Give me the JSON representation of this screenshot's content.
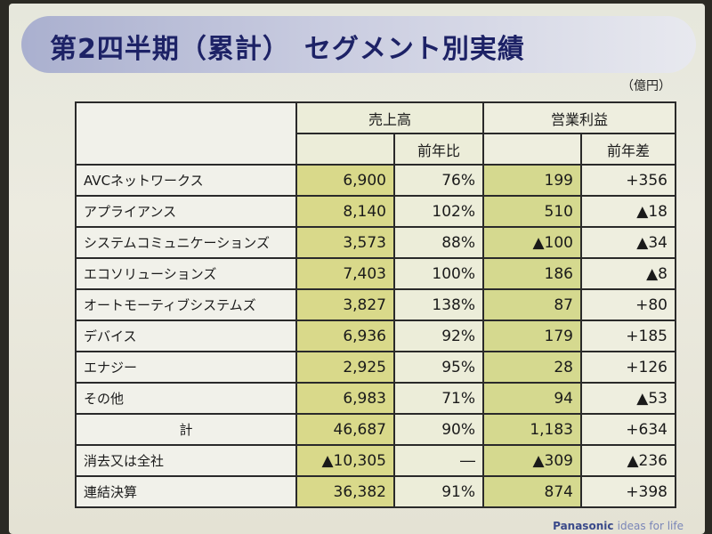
{
  "title": "第2四半期（累計）　セグメント別実績",
  "unit": "（億円）",
  "headers": {
    "sales": "売上高",
    "yoy": "前年比",
    "op": "営業利益",
    "diff": "前年差"
  },
  "rows": [
    {
      "label": "AVCネットワークス",
      "sales": "6,900",
      "yoy": "76%",
      "op": "199",
      "diff": "+356"
    },
    {
      "label": "アプライアンス",
      "sales": "8,140",
      "yoy": "102%",
      "op": "510",
      "diff": "▲18"
    },
    {
      "label": "システムコミュニケーションズ",
      "sales": "3,573",
      "yoy": "88%",
      "op": "▲100",
      "diff": "▲34"
    },
    {
      "label": "エコソリューションズ",
      "sales": "7,403",
      "yoy": "100%",
      "op": "186",
      "diff": "▲8"
    },
    {
      "label": "オートモーティブシステムズ",
      "sales": "3,827",
      "yoy": "138%",
      "op": "87",
      "diff": "+80"
    },
    {
      "label": "デバイス",
      "sales": "6,936",
      "yoy": "92%",
      "op": "179",
      "diff": "+185"
    },
    {
      "label": "エナジー",
      "sales": "2,925",
      "yoy": "95%",
      "op": "28",
      "diff": "+126"
    },
    {
      "label": "その他",
      "sales": "6,983",
      "yoy": "71%",
      "op": "94",
      "diff": "▲53"
    },
    {
      "label": "計",
      "sales": "46,687",
      "yoy": "90%",
      "op": "1,183",
      "diff": "+634"
    },
    {
      "label": "消去又は全社",
      "sales": "▲10,305",
      "yoy": "―",
      "op": "▲309",
      "diff": "▲236"
    },
    {
      "label": "連結決算",
      "sales": "36,382",
      "yoy": "91%",
      "op": "874",
      "diff": "+398"
    }
  ],
  "brand": {
    "name": "Panasonic",
    "tagline": "ideas for life"
  }
}
